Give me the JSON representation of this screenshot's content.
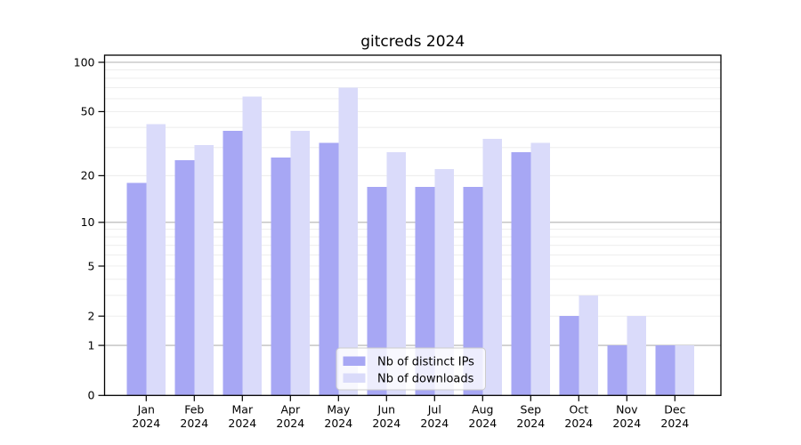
{
  "chart_data": {
    "type": "bar",
    "title": "gitcreds 2024",
    "x_year_line": "2024",
    "categories": [
      "Jan",
      "Feb",
      "Mar",
      "Apr",
      "May",
      "Jun",
      "Jul",
      "Aug",
      "Sep",
      "Oct",
      "Nov",
      "Dec"
    ],
    "series": [
      {
        "name": "Nb of distinct IPs",
        "color": "#a7a7f4",
        "values": [
          18,
          25,
          38,
          26,
          32,
          17,
          17,
          17,
          28,
          2,
          1,
          1
        ]
      },
      {
        "name": "Nb of downloads",
        "color": "#dadbfa",
        "values": [
          42,
          31,
          62,
          38,
          70,
          28,
          22,
          34,
          32,
          3,
          2,
          1
        ]
      }
    ],
    "y_scale": "log1p",
    "y_ticks": [
      0,
      1,
      2,
      5,
      10,
      20,
      50,
      100
    ],
    "y_tick_labels": [
      "0",
      "1",
      "2",
      "5",
      "10",
      "20",
      "50",
      "100"
    ],
    "y_major_gridlines": [
      1,
      10,
      100
    ],
    "y_minor_gridlines": [
      2,
      3,
      4,
      5,
      6,
      7,
      8,
      9,
      20,
      30,
      40,
      50,
      60,
      70,
      80,
      90
    ],
    "ylim": [
      0,
      110
    ],
    "grid": true,
    "legend_position": "lower-center"
  },
  "colors": {
    "major_gridline": "#b2b2b2",
    "minor_gridline": "#ebebeb",
    "spine": "#000000",
    "legend_border": "#cccccc",
    "legend_fill": "#ffffff"
  }
}
